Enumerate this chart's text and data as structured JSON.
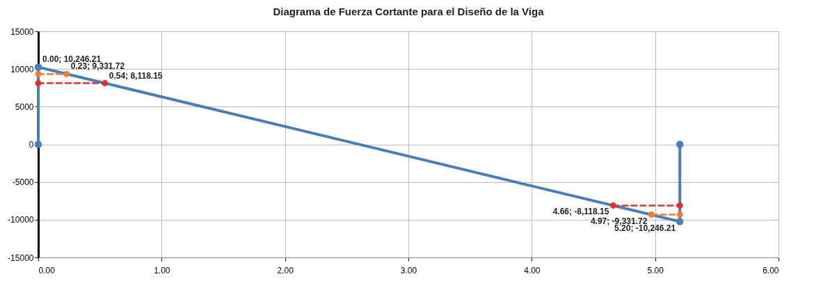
{
  "chart_data": {
    "type": "line",
    "title": "Diagrama de Fuerza Cortante para el Diseño de la Viga",
    "series": [
      {
        "color": "#4a7ebb",
        "x": [
          0,
          0,
          5.2,
          5.2
        ],
        "values": [
          0,
          10246.21,
          -10246.21,
          0
        ],
        "line_style": "solid"
      },
      {
        "color": "#ed7d31",
        "x": [
          0,
          0.23
        ],
        "values": [
          9331.72,
          9331.72
        ],
        "line_style": "dashed"
      },
      {
        "color": "#e03030",
        "x": [
          0,
          0.54
        ],
        "values": [
          8118.15,
          8118.15
        ],
        "line_style": "dashed"
      },
      {
        "color": "#ed7d31",
        "x": [
          4.97,
          5.2
        ],
        "values": [
          -9331.72,
          -9331.72
        ],
        "line_style": "dashed"
      },
      {
        "color": "#e03030",
        "x": [
          4.66,
          5.2
        ],
        "values": [
          -8118.15,
          -8118.15
        ],
        "line_style": "dashed"
      }
    ],
    "xlim": [
      0,
      6
    ],
    "xticks": [
      {
        "value": 0,
        "label": "0.00"
      },
      {
        "value": 1,
        "label": "1.00"
      },
      {
        "value": 2,
        "label": "2.00"
      },
      {
        "value": 3,
        "label": "3.00"
      },
      {
        "value": 4,
        "label": "4.00"
      },
      {
        "value": 5,
        "label": "5.00"
      },
      {
        "value": 6,
        "label": "6.00"
      }
    ],
    "ylim": [
      -15000,
      15000
    ],
    "yticks": [
      -15000,
      -10000,
      -5000,
      0,
      5000,
      10000,
      15000
    ],
    "grid": true,
    "marker": "circle",
    "annotations": [
      {
        "text": "0.00; 10,246.21",
        "x": 0,
        "y": 10246.21
      },
      {
        "text": "0.23; 9,331.72",
        "x": 0.23,
        "y": 9331.72
      },
      {
        "text": "0.54; 8,118.15",
        "x": 0.54,
        "y": 8118.15
      },
      {
        "text": "4.66; -8,118.15",
        "x": 4.66,
        "y": -8118.15
      },
      {
        "text": "4.97; -9,331.72",
        "x": 4.97,
        "y": -9331.72
      },
      {
        "text": "5.20; -10,246.21",
        "x": 5.2,
        "y": -10246.21
      }
    ]
  }
}
